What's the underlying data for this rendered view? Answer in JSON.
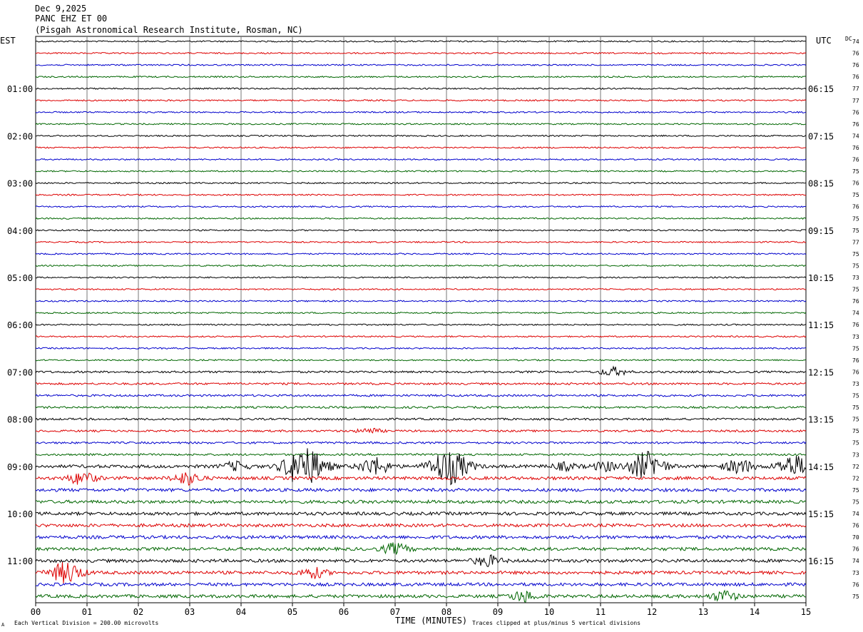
{
  "header": {
    "date": "Dec 9,2025",
    "station": "PANC EHZ ET 00",
    "institution": "(Pisgah Astronomical Research Institute, Rosman, NC)"
  },
  "chart_data": {
    "type": "line",
    "title": "Dec 9,2025",
    "left_timezone_label": "EST",
    "right_timezone_label": "UTC",
    "dc_label": "DC",
    "xlabel": "TIME (MINUTES)",
    "xlim": [
      0,
      15
    ],
    "x_tick_labels": [
      "00",
      "01",
      "02",
      "03",
      "04",
      "05",
      "06",
      "07",
      "08",
      "09",
      "10",
      "11",
      "12",
      "13",
      "14",
      "15"
    ],
    "left_hour_labels": [
      "01:00",
      "02:00",
      "03:00",
      "04:00",
      "05:00",
      "06:00",
      "07:00",
      "08:00",
      "09:00",
      "10:00",
      "11:00"
    ],
    "right_hour_labels": [
      "06:15",
      "07:15",
      "08:15",
      "09:15",
      "10:15",
      "11:15",
      "12:15",
      "13:15",
      "14:15",
      "15:15",
      "16:15"
    ],
    "trace_colors": [
      "#000000",
      "#dd0000",
      "#0000cc",
      "#006600"
    ],
    "dc_offsets": [
      74,
      76,
      76,
      76,
      77,
      77,
      76,
      76,
      74,
      76,
      76,
      75,
      76,
      75,
      76,
      75,
      75,
      77,
      75,
      75,
      73,
      75,
      76,
      74,
      76,
      73,
      75,
      76,
      76,
      73,
      75,
      75,
      75,
      75,
      75,
      73,
      72,
      72,
      75,
      75,
      74,
      76,
      70,
      76,
      74,
      73,
      76,
      75
    ],
    "events": [
      {
        "trace": 36,
        "minute": 3.9,
        "amplitude": 0.25
      },
      {
        "trace": 36,
        "minute": 5.0,
        "amplitude": 0.3
      },
      {
        "trace": 36,
        "minute": 5.28,
        "amplitude": 1.0
      },
      {
        "trace": 36,
        "minute": 6.6,
        "amplitude": 0.5
      },
      {
        "trace": 36,
        "minute": 8.05,
        "amplitude": 1.0
      },
      {
        "trace": 36,
        "minute": 10.3,
        "amplitude": 0.2
      },
      {
        "trace": 36,
        "minute": 11.1,
        "amplitude": 0.25
      },
      {
        "trace": 36,
        "minute": 11.9,
        "amplitude": 0.8
      },
      {
        "trace": 36,
        "minute": 13.7,
        "amplitude": 0.4
      },
      {
        "trace": 36,
        "minute": 14.75,
        "amplitude": 0.6
      },
      {
        "trace": 37,
        "minute": 0.9,
        "amplitude": 0.35
      },
      {
        "trace": 37,
        "minute": 2.95,
        "amplitude": 0.35
      },
      {
        "trace": 28,
        "minute": 11.25,
        "amplitude": 0.25
      },
      {
        "trace": 33,
        "minute": 6.5,
        "amplitude": 0.15
      },
      {
        "trace": 45,
        "minute": 0.6,
        "amplitude": 0.6
      },
      {
        "trace": 45,
        "minute": 5.4,
        "amplitude": 0.3
      },
      {
        "trace": 44,
        "minute": 8.8,
        "amplitude": 0.3
      },
      {
        "trace": 43,
        "minute": 7.0,
        "amplitude": 0.3
      },
      {
        "trace": 47,
        "minute": 9.5,
        "amplitude": 0.3
      },
      {
        "trace": 47,
        "minute": 13.4,
        "amplitude": 0.3
      }
    ]
  },
  "footer": {
    "scale_note": "Each Vertical Division =  200.00 microvolts",
    "clip_note": "Traces clipped at plus/minus 5 vertical divisions",
    "corner_mark": "A"
  }
}
